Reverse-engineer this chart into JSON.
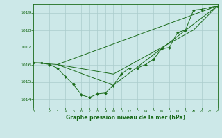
{
  "background_color": "#cce8e8",
  "grid_color": "#aacccc",
  "line_color": "#1a6b1a",
  "marker_color": "#1a6b1a",
  "title": "Graphe pression niveau de la mer (hPa)",
  "xlim": [
    0,
    23
  ],
  "ylim": [
    1013.5,
    1019.5
  ],
  "yticks": [
    1014,
    1015,
    1016,
    1017,
    1018,
    1019
  ],
  "xticks": [
    0,
    1,
    2,
    3,
    4,
    5,
    6,
    7,
    8,
    9,
    10,
    11,
    12,
    13,
    14,
    15,
    16,
    17,
    18,
    19,
    20,
    21,
    22,
    23
  ],
  "line1_x": [
    0,
    1,
    2,
    3,
    4,
    5,
    6,
    7,
    8,
    9,
    10,
    11,
    12,
    13,
    14,
    15,
    16,
    17,
    18,
    19,
    20,
    21,
    22,
    23
  ],
  "line1_y": [
    1016.1,
    1016.1,
    1016.0,
    1015.8,
    1015.3,
    1014.85,
    1014.25,
    1014.1,
    1014.3,
    1014.35,
    1014.8,
    1015.45,
    1015.8,
    1015.8,
    1016.0,
    1016.3,
    1016.9,
    1017.0,
    1017.85,
    1018.0,
    1019.15,
    1019.2,
    1019.3,
    1019.4
  ],
  "line2_x": [
    0,
    3,
    23
  ],
  "line2_y": [
    1016.1,
    1016.0,
    1019.4
  ],
  "line3_x": [
    3,
    10,
    23
  ],
  "line3_y": [
    1016.0,
    1014.8,
    1019.4
  ],
  "line4_x": [
    3,
    10,
    20,
    23
  ],
  "line4_y": [
    1016.0,
    1015.45,
    1018.0,
    1019.4
  ],
  "figsize": [
    3.2,
    2.0
  ],
  "dpi": 100
}
